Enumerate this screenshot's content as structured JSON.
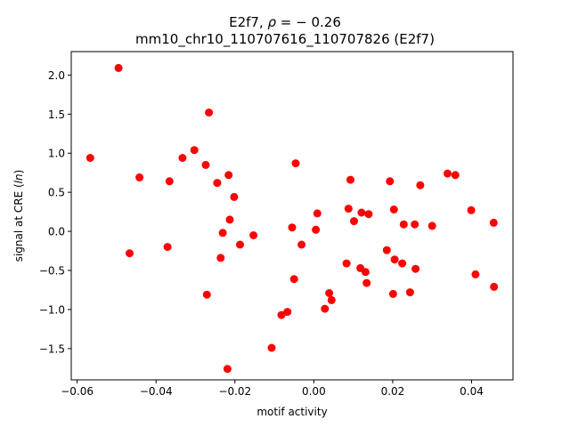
{
  "chart_data": {
    "type": "scatter",
    "title_line1_prefix": "E2f7, ",
    "title_line1_rho": "ρ",
    "title_line1_suffix": " = − 0.26",
    "title_line2": "mm10_chr10_110707616_110707826 (E2f7)",
    "xlabel": "motif activity",
    "ylabel_prefix": "signal at CRE (",
    "ylabel_italic": "ln",
    "ylabel_suffix": ")",
    "xlim": [
      -0.0615,
      0.0505
    ],
    "ylim": [
      -1.9,
      2.3
    ],
    "xticks": [
      -0.06,
      -0.04,
      -0.02,
      0.0,
      0.02,
      0.04
    ],
    "xtick_labels": [
      "−0.06",
      "−0.04",
      "−0.02",
      "0.00",
      "0.02",
      "0.04"
    ],
    "yticks": [
      -1.5,
      -1.0,
      -0.5,
      0.0,
      0.5,
      1.0,
      1.5,
      2.0
    ],
    "ytick_labels": [
      "−1.5",
      "−1.0",
      "−0.5",
      "0.0",
      "0.5",
      "1.0",
      "1.5",
      "2.0"
    ],
    "grid": false,
    "marker_color": "#ff0000",
    "points": [
      {
        "x": -0.0567,
        "y": 0.94
      },
      {
        "x": -0.0495,
        "y": 2.09
      },
      {
        "x": -0.0467,
        "y": -0.28
      },
      {
        "x": -0.0442,
        "y": 0.69
      },
      {
        "x": -0.0371,
        "y": -0.2
      },
      {
        "x": -0.0366,
        "y": 0.64
      },
      {
        "x": -0.0333,
        "y": 0.94
      },
      {
        "x": -0.0303,
        "y": 1.04
      },
      {
        "x": -0.0274,
        "y": 0.85
      },
      {
        "x": -0.0271,
        "y": -0.81
      },
      {
        "x": -0.0266,
        "y": 1.52
      },
      {
        "x": -0.0245,
        "y": 0.62
      },
      {
        "x": -0.0236,
        "y": -0.34
      },
      {
        "x": -0.0231,
        "y": -0.02
      },
      {
        "x": -0.0219,
        "y": -1.76
      },
      {
        "x": -0.0216,
        "y": 0.72
      },
      {
        "x": -0.0213,
        "y": 0.15
      },
      {
        "x": -0.0202,
        "y": 0.44
      },
      {
        "x": -0.0187,
        "y": -0.17
      },
      {
        "x": -0.0153,
        "y": -0.05
      },
      {
        "x": -0.0107,
        "y": -1.49
      },
      {
        "x": -0.0082,
        "y": -1.07
      },
      {
        "x": -0.0067,
        "y": -1.03
      },
      {
        "x": -0.0055,
        "y": 0.05
      },
      {
        "x": -0.005,
        "y": -0.61
      },
      {
        "x": -0.0046,
        "y": 0.87
      },
      {
        "x": -0.0031,
        "y": -0.17
      },
      {
        "x": 0.0005,
        "y": 0.02
      },
      {
        "x": 0.0009,
        "y": 0.23
      },
      {
        "x": 0.0028,
        "y": -0.99
      },
      {
        "x": 0.0039,
        "y": -0.79
      },
      {
        "x": 0.0045,
        "y": -0.88
      },
      {
        "x": 0.0083,
        "y": -0.41
      },
      {
        "x": 0.0088,
        "y": 0.29
      },
      {
        "x": 0.0093,
        "y": 0.66
      },
      {
        "x": 0.0102,
        "y": 0.13
      },
      {
        "x": 0.0118,
        "y": -0.47
      },
      {
        "x": 0.0121,
        "y": 0.24
      },
      {
        "x": 0.0131,
        "y": -0.52
      },
      {
        "x": 0.0134,
        "y": -0.66
      },
      {
        "x": 0.0139,
        "y": 0.22
      },
      {
        "x": 0.0185,
        "y": -0.24
      },
      {
        "x": 0.0193,
        "y": 0.64
      },
      {
        "x": 0.0201,
        "y": -0.8
      },
      {
        "x": 0.0203,
        "y": 0.28
      },
      {
        "x": 0.0205,
        "y": -0.36
      },
      {
        "x": 0.0224,
        "y": -0.41
      },
      {
        "x": 0.0228,
        "y": 0.09
      },
      {
        "x": 0.0244,
        "y": -0.78
      },
      {
        "x": 0.0256,
        "y": 0.09
      },
      {
        "x": 0.0258,
        "y": -0.48
      },
      {
        "x": 0.027,
        "y": 0.59
      },
      {
        "x": 0.03,
        "y": 0.07
      },
      {
        "x": 0.0339,
        "y": 0.74
      },
      {
        "x": 0.0359,
        "y": 0.72
      },
      {
        "x": 0.0399,
        "y": 0.27
      },
      {
        "x": 0.041,
        "y": -0.55
      },
      {
        "x": 0.0456,
        "y": 0.11
      },
      {
        "x": 0.0457,
        "y": -0.71
      }
    ]
  }
}
